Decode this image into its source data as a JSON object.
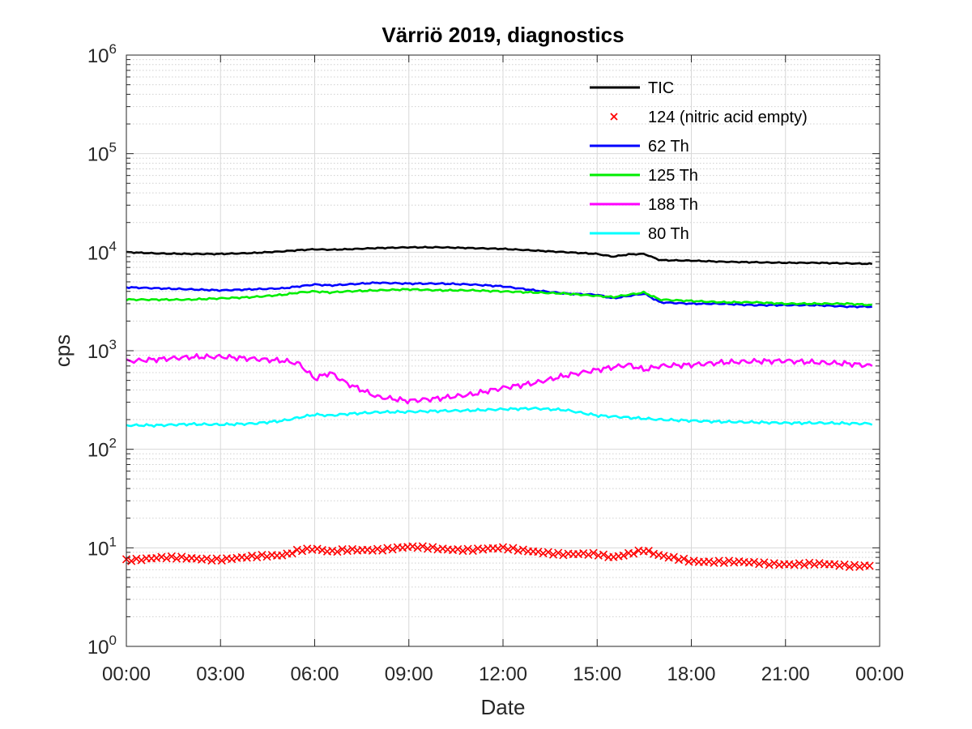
{
  "chart_data": {
    "type": "line",
    "title": "Värriö 2019, diagnostics",
    "xlabel": "Date",
    "ylabel": "cps",
    "yscale": "log",
    "ylim": [
      1,
      1000000
    ],
    "xlim": [
      "00:00",
      "24:00"
    ],
    "grid": true,
    "minor_grid": true,
    "legend_position": "top-right",
    "x_ticks": [
      "00:00",
      "03:00",
      "06:00",
      "09:00",
      "12:00",
      "15:00",
      "18:00",
      "21:00",
      "00:00"
    ],
    "y_ticks": [
      {
        "base": "10",
        "exp": "0"
      },
      {
        "base": "10",
        "exp": "1"
      },
      {
        "base": "10",
        "exp": "2"
      },
      {
        "base": "10",
        "exp": "3"
      },
      {
        "base": "10",
        "exp": "4"
      },
      {
        "base": "10",
        "exp": "5"
      },
      {
        "base": "10",
        "exp": "6"
      }
    ],
    "x_hours": [
      0,
      1,
      2,
      3,
      4,
      5,
      5.5,
      6,
      6.5,
      7,
      8,
      9,
      10,
      11,
      12,
      13,
      14,
      15,
      15.5,
      16,
      16.5,
      17,
      18,
      19,
      20,
      21,
      22,
      23,
      23.8
    ],
    "series": [
      {
        "name": "TIC",
        "color": "#000000",
        "style": "line",
        "values": [
          10000,
          9700,
          9600,
          9600,
          9800,
          10200,
          10500,
          10700,
          10600,
          10700,
          11000,
          11200,
          11200,
          11000,
          10800,
          10400,
          10000,
          9600,
          9000,
          9500,
          9600,
          8300,
          8200,
          8000,
          7900,
          7800,
          7800,
          7700,
          7600
        ]
      },
      {
        "name": "124 (nitric acid empty)",
        "color": "#ff0000",
        "style": "marker-x",
        "values": [
          7.6,
          7.9,
          7.8,
          7.7,
          8.0,
          8.5,
          9.6,
          9.8,
          9.0,
          9.4,
          9.7,
          10.1,
          9.8,
          9.6,
          9.8,
          9.3,
          8.5,
          8.6,
          8.1,
          8.8,
          9.4,
          8.2,
          7.4,
          7.2,
          7.0,
          6.9,
          6.8,
          6.6,
          6.7
        ]
      },
      {
        "name": "62 Th",
        "color": "#0000ff",
        "style": "line",
        "values": [
          4400,
          4300,
          4200,
          4100,
          4200,
          4300,
          4500,
          4700,
          4600,
          4700,
          4900,
          4800,
          4800,
          4700,
          4500,
          4100,
          3800,
          3700,
          3400,
          3600,
          3800,
          3100,
          3000,
          3000,
          2900,
          2900,
          2900,
          2800,
          2800
        ]
      },
      {
        "name": "125 Th",
        "color": "#00ee00",
        "style": "line",
        "values": [
          3300,
          3300,
          3300,
          3400,
          3500,
          3700,
          3900,
          4000,
          3900,
          4000,
          4100,
          4200,
          4100,
          4100,
          4000,
          3900,
          3800,
          3600,
          3500,
          3700,
          3900,
          3300,
          3200,
          3100,
          3100,
          3000,
          3000,
          3000,
          2900
        ]
      },
      {
        "name": "188 Th",
        "color": "#ff00ff",
        "style": "line",
        "values": [
          780,
          820,
          860,
          870,
          830,
          790,
          740,
          520,
          600,
          470,
          340,
          310,
          330,
          360,
          420,
          470,
          560,
          640,
          680,
          720,
          640,
          700,
          720,
          760,
          780,
          790,
          760,
          740,
          700
        ]
      },
      {
        "name": "80 Th",
        "color": "#00ffff",
        "style": "line",
        "values": [
          175,
          175,
          180,
          178,
          182,
          195,
          210,
          225,
          220,
          228,
          238,
          240,
          245,
          248,
          255,
          260,
          250,
          220,
          215,
          210,
          205,
          200,
          195,
          190,
          188,
          185,
          185,
          183,
          182
        ]
      }
    ]
  }
}
